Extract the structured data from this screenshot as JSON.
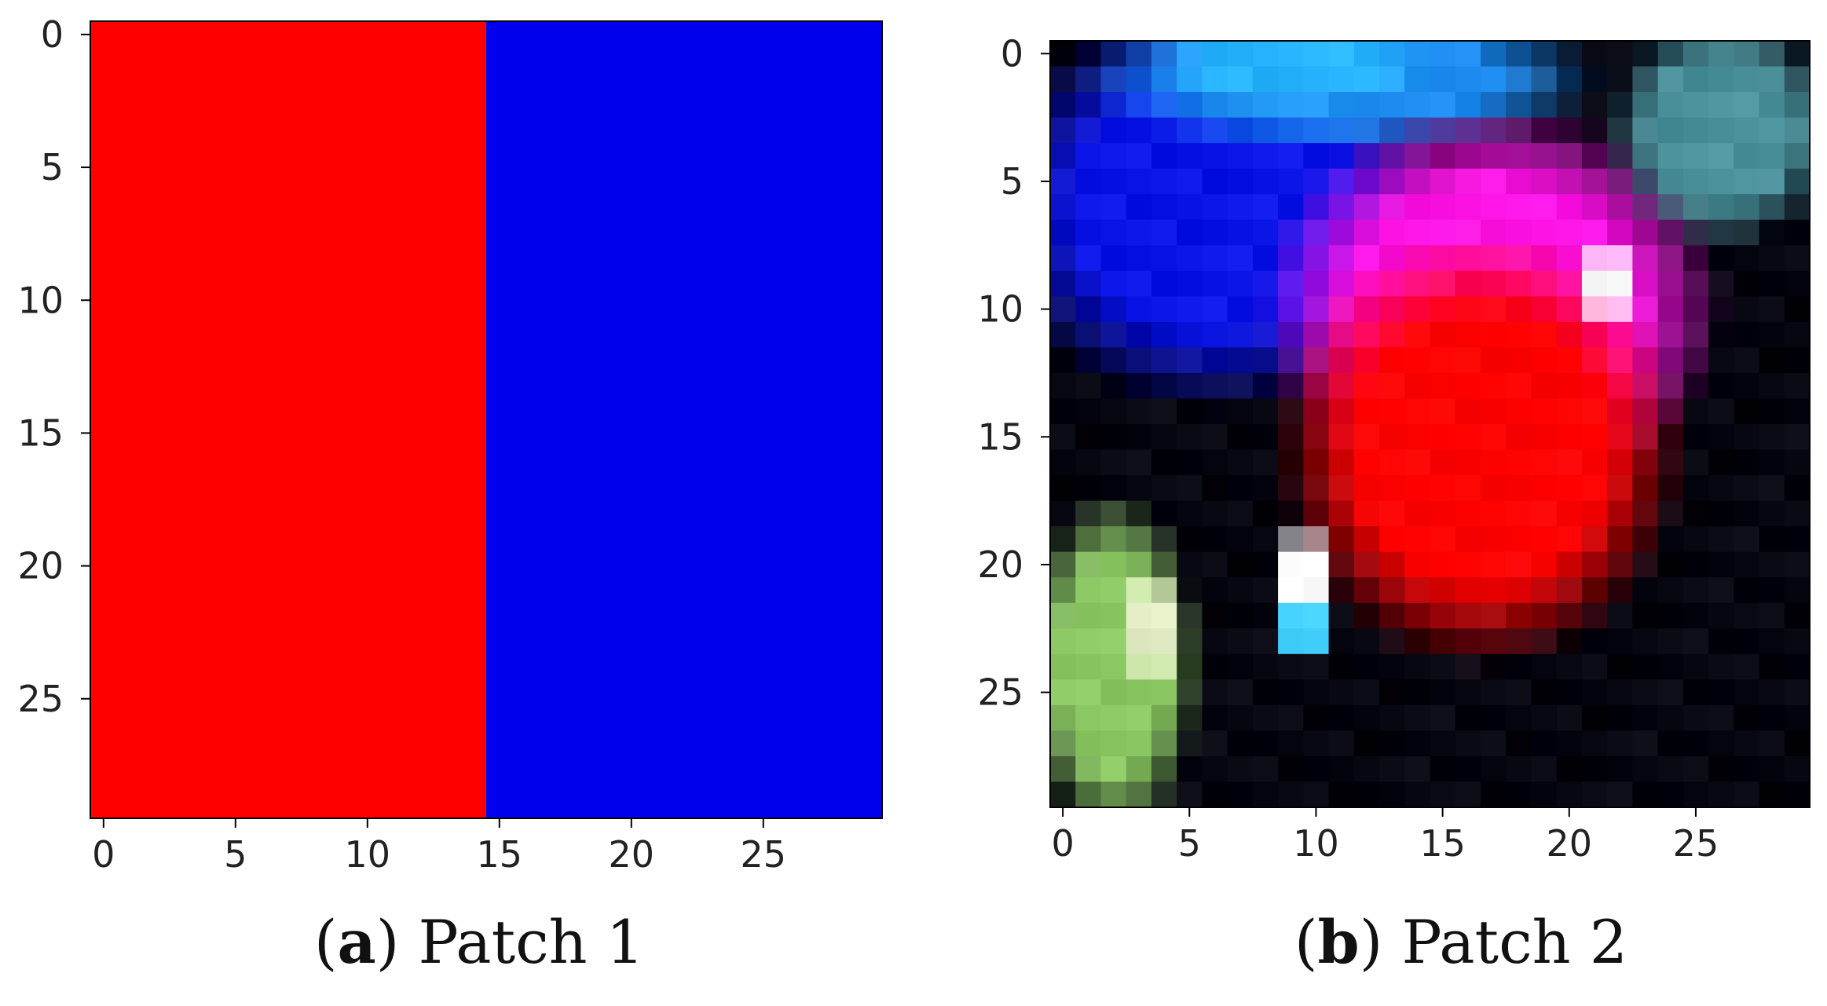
{
  "figure": {
    "caption_a": {
      "letter": "a",
      "text": "Patch 1"
    },
    "caption_b": {
      "letter": "b",
      "text": "Patch 2"
    }
  },
  "chart_data": [
    {
      "type": "heatmap",
      "title": "",
      "xlabel": "",
      "ylabel": "",
      "xlim": [
        -0.5,
        29.5
      ],
      "ylim": [
        29.5,
        -0.5
      ],
      "xticks": [
        0,
        5,
        10,
        15,
        20,
        25
      ],
      "yticks": [
        0,
        5,
        10,
        15,
        20,
        25
      ],
      "grid": false,
      "image_size": [
        30,
        30
      ],
      "regions": [
        {
          "color": "#ff0000",
          "x_range": [
            0,
            14
          ],
          "y_range": [
            0,
            29
          ]
        },
        {
          "color": "#0000ee",
          "x_range": [
            15,
            29
          ],
          "y_range": [
            0,
            29
          ]
        }
      ]
    },
    {
      "type": "heatmap",
      "title": "",
      "xlabel": "",
      "ylabel": "",
      "xlim": [
        -0.5,
        29.5
      ],
      "ylim": [
        29.5,
        -0.5
      ],
      "xticks": [
        0,
        5,
        10,
        15,
        20,
        25
      ],
      "yticks": [
        0,
        5,
        10,
        15,
        20,
        25
      ],
      "grid": false,
      "image_size": [
        30,
        30
      ],
      "background_color": "#050510",
      "features": [
        {
          "name": "blue",
          "color": "#0a14e6",
          "center": [
            6,
            6
          ],
          "radius": [
            8,
            7
          ]
        },
        {
          "name": "sky-blue",
          "color": "#1e8cf0",
          "center": [
            11,
            1
          ],
          "radius": [
            9,
            2.5
          ]
        },
        {
          "name": "light-sky",
          "color": "#28b4ff",
          "center": [
            9,
            0.5
          ],
          "radius": [
            5,
            1.5
          ]
        },
        {
          "name": "magenta",
          "color": "#ff14e6",
          "center": [
            17,
            10
          ],
          "radius": [
            8,
            7
          ]
        },
        {
          "name": "red",
          "color": "#ff0000",
          "center": [
            16.5,
            15.5
          ],
          "radius": [
            7,
            7.5
          ]
        },
        {
          "name": "highlight-top",
          "color": "#ffffff",
          "center": [
            21.5,
            9
          ],
          "radius": [
            0.8,
            1.8
          ]
        },
        {
          "name": "highlight-bottom",
          "color": "#ffffff",
          "center": [
            9.5,
            20.5
          ],
          "radius": [
            0.9,
            2
          ]
        },
        {
          "name": "cyan-glow",
          "color": "#46d2ff",
          "center": [
            9.5,
            22.5
          ],
          "radius": [
            1.2,
            0.9
          ]
        },
        {
          "name": "green-patch",
          "color": "#8cc864",
          "center": [
            2,
            24
          ],
          "radius": [
            3,
            6
          ]
        },
        {
          "name": "pale-green",
          "color": "#e6f0c8",
          "center": [
            3.5,
            22.5
          ],
          "radius": [
            1.3,
            2
          ]
        },
        {
          "name": "teal-corner",
          "color": "#4b919b",
          "center": [
            26,
            3
          ],
          "radius": [
            4,
            4
          ]
        }
      ]
    }
  ]
}
